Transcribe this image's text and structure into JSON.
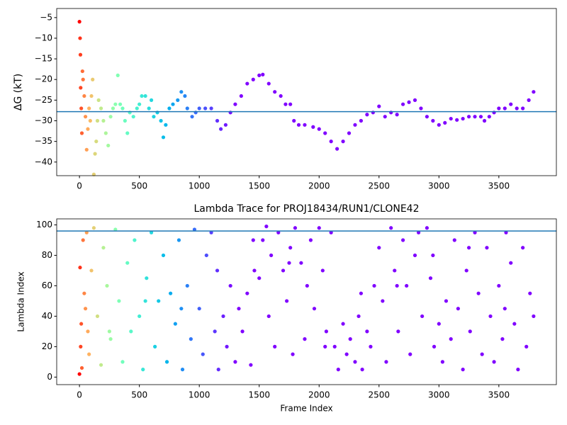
{
  "chart_data": [
    {
      "type": "scatter",
      "y_label": "ΔG (kT)",
      "cmap": "rainbow_r",
      "color_norm": "sqrt",
      "clim": [
        0,
        1300
      ],
      "hline": -27.8,
      "hline_color": "#1f77b4",
      "xlim": [
        -190,
        3980
      ],
      "ylim": [
        -43.3,
        -2.8
      ],
      "xticks": [
        0,
        500,
        1000,
        1500,
        2000,
        2500,
        3000,
        3500
      ],
      "yticks": [
        {
          "value": -40,
          "label": "−40"
        },
        {
          "value": -35,
          "label": "−35"
        },
        {
          "value": -30,
          "label": "−30"
        },
        {
          "value": -25,
          "label": "−25"
        },
        {
          "value": -20,
          "label": "−20"
        },
        {
          "value": -15,
          "label": "−15"
        },
        {
          "value": -10,
          "label": "−10"
        },
        {
          "value": -5,
          "label": "−5"
        }
      ],
      "x": [
        0,
        5,
        8,
        10,
        15,
        20,
        25,
        30,
        40,
        50,
        60,
        70,
        80,
        90,
        100,
        110,
        120,
        130,
        140,
        150,
        160,
        180,
        200,
        220,
        240,
        260,
        280,
        300,
        320,
        340,
        360,
        380,
        400,
        420,
        450,
        480,
        500,
        520,
        550,
        580,
        600,
        620,
        650,
        680,
        700,
        720,
        750,
        780,
        820,
        850,
        880,
        900,
        940,
        970,
        1000,
        1050,
        1100,
        1150,
        1180,
        1220,
        1260,
        1300,
        1350,
        1400,
        1450,
        1500,
        1530,
        1580,
        1630,
        1680,
        1720,
        1760,
        1790,
        1830,
        1880,
        1950,
        2000,
        2050,
        2100,
        2150,
        2200,
        2250,
        2300,
        2350,
        2400,
        2450,
        2500,
        2550,
        2600,
        2650,
        2700,
        2750,
        2800,
        2850,
        2900,
        2950,
        3000,
        3050,
        3100,
        3150,
        3200,
        3250,
        3300,
        3350,
        3380,
        3420,
        3460,
        3500,
        3550,
        3600,
        3650,
        3700,
        3750,
        3790
      ],
      "values": [
        -6,
        -10,
        -14,
        -22,
        -27,
        -33,
        -18,
        -20,
        -24,
        -29,
        -37,
        -32,
        -27,
        -30,
        -24,
        -20,
        -43,
        -38,
        -35,
        -30,
        -25,
        -27,
        -30,
        -33,
        -36,
        -29,
        -27,
        -26,
        -19,
        -26,
        -27,
        -30,
        -33,
        -28,
        -29,
        -27,
        -26,
        -24,
        -24,
        -27,
        -25,
        -29,
        -28,
        -30,
        -34,
        -31,
        -27,
        -26,
        -25,
        -23,
        -24,
        -27,
        -29,
        -28,
        -27,
        -27,
        -27,
        -30,
        -32,
        -31,
        -28,
        -26,
        -24,
        -21,
        -20,
        -19,
        -18.8,
        -21,
        -23,
        -24,
        -26,
        -26,
        -30,
        -31,
        -31,
        -31.5,
        -32,
        -33,
        -35,
        -36.8,
        -35,
        -33,
        -31,
        -30,
        -28.5,
        -28,
        -26.5,
        -29,
        -28,
        -28.5,
        -26,
        -25.5,
        -25,
        -27,
        -29,
        -30,
        -31,
        -30.5,
        -29.5,
        -29.8,
        -29.5,
        -29,
        -29,
        -29,
        -30,
        -29,
        -28,
        -27,
        -27,
        -26,
        -27,
        -27,
        -25,
        -23
      ]
    },
    {
      "type": "scatter",
      "title": "Lambda Trace for PROJ18434/RUN1/CLONE42",
      "x_label": "Frame Index",
      "y_label": "Lambda Index",
      "cmap": "rainbow_r",
      "color_norm": "sqrt",
      "clim": [
        0,
        1300
      ],
      "hline": 96,
      "hline_color": "#1f77b4",
      "xlim": [
        -190,
        3980
      ],
      "ylim": [
        -4.95,
        103.95
      ],
      "xticks": [
        0,
        500,
        1000,
        1500,
        2000,
        2500,
        3000,
        3500
      ],
      "yticks": [
        0,
        20,
        40,
        60,
        80,
        100
      ],
      "x": [
        0,
        5,
        10,
        15,
        20,
        30,
        40,
        50,
        60,
        70,
        80,
        100,
        120,
        150,
        180,
        200,
        230,
        260,
        300,
        330,
        360,
        400,
        430,
        460,
        500,
        530,
        560,
        600,
        630,
        660,
        700,
        730,
        760,
        800,
        830,
        860,
        900,
        930,
        960,
        1000,
        1030,
        1060,
        1100,
        1130,
        1160,
        1200,
        1230,
        1260,
        1300,
        1330,
        1360,
        1400,
        1430,
        1460,
        1500,
        1530,
        1560,
        1580,
        1600,
        1630,
        1660,
        1700,
        1730,
        1760,
        1780,
        1800,
        1850,
        1880,
        1900,
        1930,
        1960,
        2000,
        2030,
        2060,
        2100,
        2130,
        2160,
        2200,
        2230,
        2260,
        2300,
        2330,
        2360,
        2400,
        2430,
        2460,
        2500,
        2530,
        2560,
        2600,
        2630,
        2660,
        2700,
        2730,
        2760,
        2800,
        2830,
        2860,
        2900,
        2930,
        2960,
        3000,
        3030,
        3060,
        3100,
        3130,
        3160,
        3200,
        3230,
        3260,
        3300,
        3330,
        3360,
        3400,
        3430,
        3460,
        3500,
        3530,
        3560,
        3600,
        3630,
        3660,
        3700,
        3730,
        3760,
        3790,
        250,
        550,
        850,
        1150,
        1450,
        1750,
        2050,
        2350,
        2650,
        2950,
        3250,
        3550
      ],
      "values": [
        2,
        72,
        20,
        35,
        6,
        90,
        55,
        45,
        95,
        30,
        15,
        70,
        98,
        40,
        8,
        85,
        60,
        25,
        97,
        50,
        10,
        75,
        30,
        90,
        40,
        5,
        65,
        95,
        20,
        50,
        80,
        10,
        55,
        35,
        90,
        5,
        60,
        25,
        97,
        45,
        15,
        80,
        95,
        30,
        5,
        40,
        20,
        60,
        10,
        45,
        30,
        55,
        8,
        70,
        65,
        90,
        99,
        40,
        80,
        20,
        95,
        70,
        50,
        85,
        15,
        98,
        75,
        25,
        60,
        90,
        45,
        98,
        70,
        30,
        95,
        20,
        5,
        35,
        15,
        25,
        10,
        40,
        5,
        30,
        20,
        60,
        85,
        50,
        10,
        98,
        70,
        30,
        90,
        60,
        15,
        80,
        95,
        40,
        98,
        65,
        20,
        35,
        10,
        50,
        25,
        90,
        45,
        5,
        70,
        30,
        95,
        55,
        15,
        85,
        40,
        10,
        60,
        25,
        95,
        75,
        35,
        5,
        85,
        20,
        55,
        40,
        30,
        50,
        45,
        70,
        90,
        75,
        20,
        55,
        60,
        80,
        85,
        45
      ]
    }
  ]
}
